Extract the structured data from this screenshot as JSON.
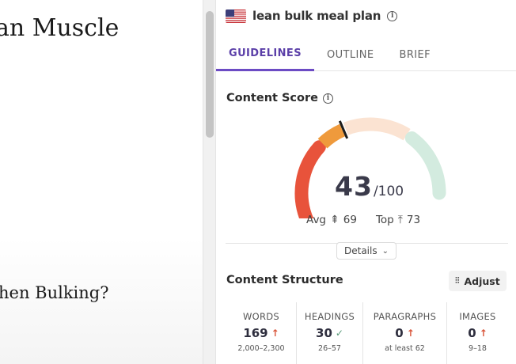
{
  "document": {
    "heading_partial": "an Muscle",
    "subheading_partial": "hen Bulking?"
  },
  "panel": {
    "keyword": "lean bulk meal plan",
    "flag_icon": "us-flag-icon",
    "tabs": [
      {
        "label": "GUIDELINES",
        "active": true
      },
      {
        "label": "OUTLINE",
        "active": false
      },
      {
        "label": "BRIEF",
        "active": false
      }
    ],
    "content_score": {
      "title": "Content Score",
      "score": "43",
      "max": "/100",
      "score_value": 43,
      "avg_label": "Avg",
      "avg_value": "69",
      "top_label": "Top",
      "top_value": "73",
      "details_label": "Details",
      "colors": {
        "red": "#e8533b",
        "orange": "#ef9a3c",
        "peach": "#fbe3d2",
        "mint": "#d3ebdf",
        "needle": "#1e1e1e"
      }
    },
    "content_structure": {
      "title": "Content Structure",
      "adjust_label": "Adjust",
      "metrics": [
        {
          "label": "WORDS",
          "value": "169",
          "status": "up",
          "range": "2,000–2,300"
        },
        {
          "label": "HEADINGS",
          "value": "30",
          "status": "check",
          "range": "26–57"
        },
        {
          "label": "PARAGRAPHS",
          "value": "0",
          "status": "up",
          "range": "at least 62"
        },
        {
          "label": "IMAGES",
          "value": "0",
          "status": "up",
          "range": "9–18"
        }
      ]
    }
  }
}
